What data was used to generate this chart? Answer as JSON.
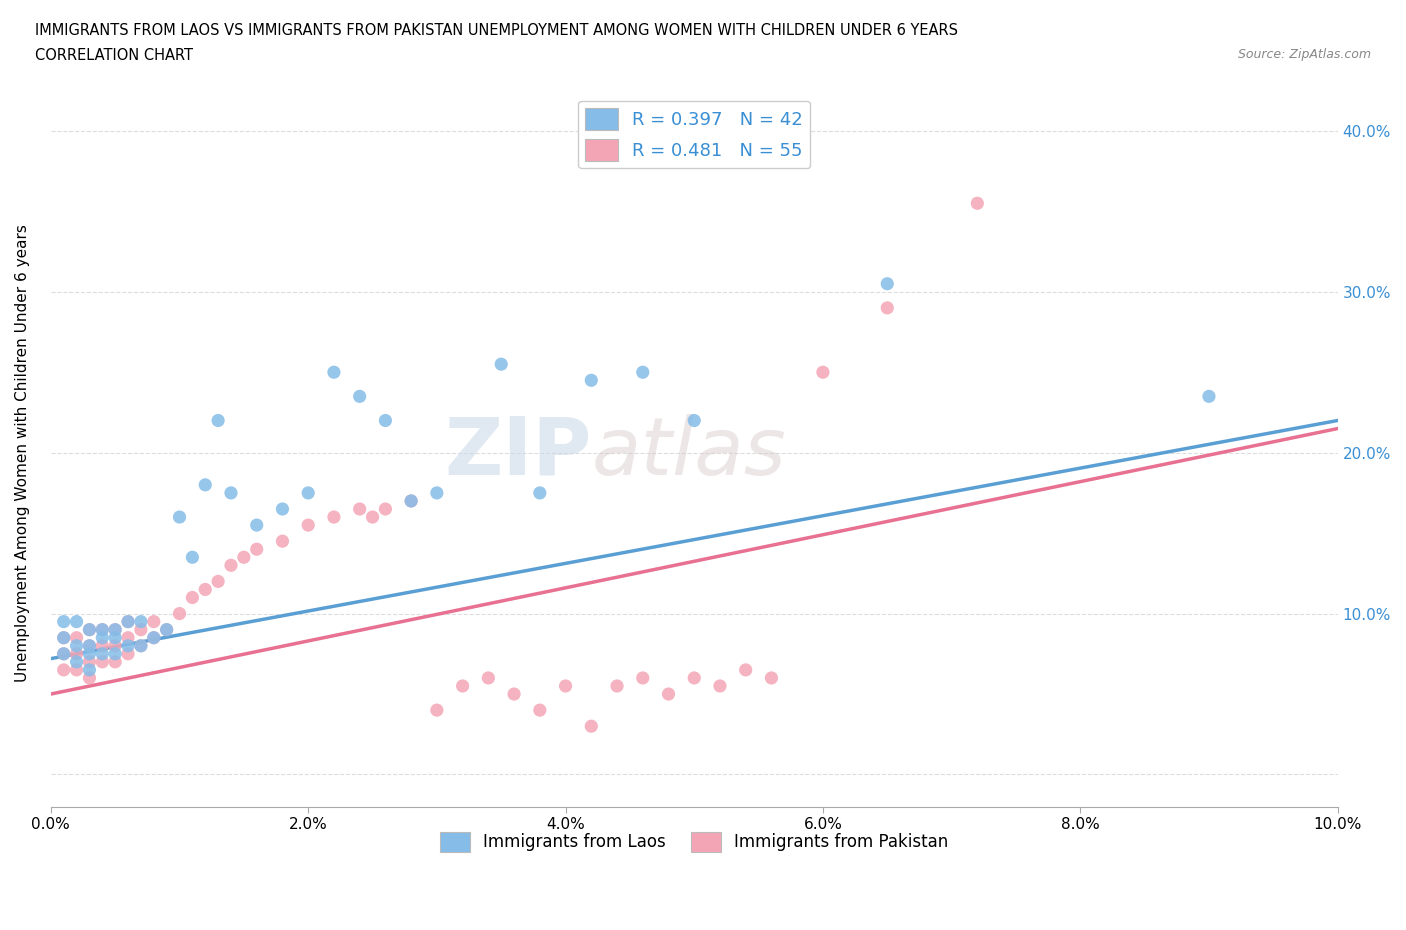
{
  "title_line1": "IMMIGRANTS FROM LAOS VS IMMIGRANTS FROM PAKISTAN UNEMPLOYMENT AMONG WOMEN WITH CHILDREN UNDER 6 YEARS",
  "title_line2": "CORRELATION CHART",
  "source": "Source: ZipAtlas.com",
  "ylabel": "Unemployment Among Women with Children Under 6 years",
  "xlim": [
    0.0,
    0.1
  ],
  "ylim": [
    -0.02,
    0.42
  ],
  "xticks": [
    0.0,
    0.02,
    0.04,
    0.06,
    0.08,
    0.1
  ],
  "yticks": [
    0.0,
    0.1,
    0.2,
    0.3,
    0.4
  ],
  "ytick_labels_right": [
    "",
    "10.0%",
    "20.0%",
    "30.0%",
    "40.0%"
  ],
  "xtick_labels": [
    "0.0%",
    "2.0%",
    "4.0%",
    "6.0%",
    "8.0%",
    "10.0%"
  ],
  "color_laos": "#85bce8",
  "color_pakistan": "#f4a5b5",
  "color_laos_line": "#5a9fd4",
  "color_pakistan_line": "#e87090",
  "R_laos": "0.397",
  "N_laos": "42",
  "R_pakistan": "0.481",
  "N_pakistan": "55",
  "legend_label_laos": "Immigrants from Laos",
  "legend_label_pakistan": "Immigrants from Pakistan",
  "watermark": "ZIPatlas",
  "laos_x": [
    0.001,
    0.001,
    0.001,
    0.002,
    0.002,
    0.002,
    0.003,
    0.003,
    0.003,
    0.003,
    0.004,
    0.004,
    0.004,
    0.005,
    0.005,
    0.005,
    0.006,
    0.006,
    0.007,
    0.007,
    0.008,
    0.009,
    0.01,
    0.011,
    0.012,
    0.013,
    0.014,
    0.016,
    0.018,
    0.02,
    0.022,
    0.024,
    0.026,
    0.028,
    0.03,
    0.035,
    0.038,
    0.042,
    0.046,
    0.05,
    0.065,
    0.09
  ],
  "laos_y": [
    0.075,
    0.085,
    0.095,
    0.07,
    0.08,
    0.095,
    0.065,
    0.075,
    0.08,
    0.09,
    0.075,
    0.085,
    0.09,
    0.075,
    0.085,
    0.09,
    0.08,
    0.095,
    0.08,
    0.095,
    0.085,
    0.09,
    0.16,
    0.135,
    0.18,
    0.22,
    0.175,
    0.155,
    0.165,
    0.175,
    0.25,
    0.235,
    0.22,
    0.17,
    0.175,
    0.255,
    0.175,
    0.245,
    0.25,
    0.22,
    0.305,
    0.235
  ],
  "pak_x": [
    0.001,
    0.001,
    0.001,
    0.002,
    0.002,
    0.002,
    0.003,
    0.003,
    0.003,
    0.003,
    0.004,
    0.004,
    0.004,
    0.005,
    0.005,
    0.005,
    0.006,
    0.006,
    0.006,
    0.007,
    0.007,
    0.008,
    0.008,
    0.009,
    0.01,
    0.011,
    0.012,
    0.013,
    0.014,
    0.015,
    0.016,
    0.018,
    0.02,
    0.022,
    0.024,
    0.025,
    0.026,
    0.028,
    0.03,
    0.032,
    0.034,
    0.036,
    0.038,
    0.04,
    0.042,
    0.044,
    0.046,
    0.048,
    0.05,
    0.052,
    0.054,
    0.056,
    0.06,
    0.065,
    0.072
  ],
  "pak_y": [
    0.065,
    0.075,
    0.085,
    0.065,
    0.075,
    0.085,
    0.06,
    0.07,
    0.08,
    0.09,
    0.07,
    0.08,
    0.09,
    0.07,
    0.08,
    0.09,
    0.075,
    0.085,
    0.095,
    0.08,
    0.09,
    0.085,
    0.095,
    0.09,
    0.1,
    0.11,
    0.115,
    0.12,
    0.13,
    0.135,
    0.14,
    0.145,
    0.155,
    0.16,
    0.165,
    0.16,
    0.165,
    0.17,
    0.04,
    0.055,
    0.06,
    0.05,
    0.04,
    0.055,
    0.03,
    0.055,
    0.06,
    0.05,
    0.06,
    0.055,
    0.065,
    0.06,
    0.25,
    0.29,
    0.355
  ],
  "laos_trendline_x": [
    0.0,
    0.1
  ],
  "laos_trendline_y": [
    0.072,
    0.22
  ],
  "pak_trendline_x": [
    0.0,
    0.1
  ],
  "pak_trendline_y": [
    0.05,
    0.215
  ]
}
